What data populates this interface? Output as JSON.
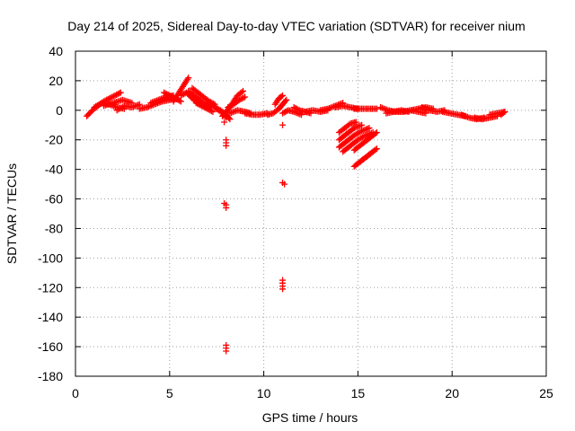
{
  "chart_data": {
    "type": "scatter",
    "title": "Day 214 of 2025, Sidereal Day-to-day VTEC variation (SDTVAR) for receiver nium",
    "xlabel": "GPS time / hours",
    "ylabel": "SDTVAR / TECUs",
    "xlim": [
      0,
      25
    ],
    "ylim": [
      -180,
      40
    ],
    "xticks": [
      0,
      5,
      10,
      15,
      20,
      25
    ],
    "yticks": [
      -180,
      -160,
      -140,
      -120,
      -100,
      -80,
      -60,
      -40,
      -20,
      0,
      20,
      40
    ],
    "grid": true,
    "marker": "+",
    "color": "#ff0000",
    "series": [
      {
        "name": "SDTVAR",
        "segments": [
          [
            [
              0.6,
              -4
            ],
            [
              0.9,
              0
            ],
            [
              1.2,
              3
            ],
            [
              1.5,
              6
            ],
            [
              1.8,
              8
            ],
            [
              2.1,
              10
            ],
            [
              2.4,
              12
            ]
          ],
          [
            [
              1.0,
              2
            ],
            [
              1.4,
              5
            ],
            [
              1.8,
              4
            ],
            [
              2.2,
              2
            ],
            [
              2.6,
              1
            ]
          ],
          [
            [
              1.5,
              3
            ],
            [
              2.0,
              5
            ],
            [
              2.5,
              7
            ],
            [
              3.0,
              5
            ]
          ],
          [
            [
              2.2,
              0
            ],
            [
              2.6,
              3
            ],
            [
              3.0,
              2
            ],
            [
              3.4,
              4
            ]
          ],
          [
            [
              3.4,
              1
            ],
            [
              3.8,
              2
            ],
            [
              4.2,
              4
            ],
            [
              4.6,
              6
            ],
            [
              5.0,
              7
            ],
            [
              5.4,
              8
            ]
          ],
          [
            [
              4.0,
              5
            ],
            [
              4.4,
              7
            ],
            [
              4.8,
              9
            ],
            [
              5.2,
              10
            ]
          ],
          [
            [
              4.7,
              12
            ],
            [
              5.0,
              10
            ],
            [
              5.3,
              8
            ],
            [
              5.6,
              6
            ]
          ],
          [
            [
              5.2,
              6
            ],
            [
              5.5,
              12
            ],
            [
              5.8,
              18
            ],
            [
              6.0,
              22
            ]
          ],
          [
            [
              5.6,
              10
            ],
            [
              5.9,
              12
            ],
            [
              6.2,
              8
            ],
            [
              6.5,
              5
            ],
            [
              6.8,
              3
            ]
          ],
          [
            [
              6.0,
              13
            ],
            [
              6.3,
              10
            ],
            [
              6.6,
              7
            ],
            [
              6.9,
              4
            ],
            [
              7.2,
              2
            ]
          ],
          [
            [
              6.2,
              15
            ],
            [
              6.5,
              12
            ],
            [
              6.8,
              9
            ],
            [
              7.1,
              6
            ],
            [
              7.4,
              4
            ]
          ],
          [
            [
              6.4,
              5
            ],
            [
              6.7,
              3
            ],
            [
              7.0,
              1
            ],
            [
              7.3,
              -1
            ]
          ],
          [
            [
              7.0,
              5
            ],
            [
              7.3,
              3
            ],
            [
              7.6,
              0
            ],
            [
              7.9,
              -2
            ],
            [
              8.0,
              -5
            ]
          ],
          [
            [
              7.4,
              2
            ],
            [
              7.7,
              0
            ],
            [
              8.0,
              -3
            ],
            [
              8.2,
              -6
            ]
          ],
          [
            [
              7.8,
              -4
            ],
            [
              8.0,
              -1
            ],
            [
              8.2,
              2
            ],
            [
              8.4,
              6
            ],
            [
              8.6,
              10
            ],
            [
              8.9,
              13
            ]
          ],
          [
            [
              8.1,
              2
            ],
            [
              8.4,
              4
            ],
            [
              8.7,
              7
            ],
            [
              9.0,
              9
            ]
          ],
          [
            [
              8.2,
              -2
            ],
            [
              8.6,
              0
            ],
            [
              9.0,
              -1
            ],
            [
              9.3,
              -2
            ]
          ],
          [
            [
              9.0,
              -2
            ],
            [
              9.4,
              -3
            ],
            [
              9.8,
              -3
            ],
            [
              10.2,
              -2
            ]
          ],
          [
            [
              10.2,
              -3
            ],
            [
              10.5,
              -2
            ],
            [
              10.8,
              1
            ],
            [
              11.0,
              4
            ],
            [
              11.2,
              7
            ]
          ],
          [
            [
              10.6,
              4
            ],
            [
              10.8,
              8
            ],
            [
              11.0,
              10
            ]
          ],
          [
            [
              11.0,
              -2
            ],
            [
              11.3,
              0
            ],
            [
              11.6,
              -1
            ],
            [
              12.0,
              -3
            ]
          ],
          [
            [
              11.6,
              2
            ],
            [
              11.9,
              0
            ],
            [
              12.2,
              -1
            ],
            [
              12.5,
              -2
            ]
          ],
          [
            [
              12.2,
              -1
            ],
            [
              12.6,
              0
            ],
            [
              13.0,
              -1
            ],
            [
              13.4,
              0
            ]
          ],
          [
            [
              13.0,
              0
            ],
            [
              13.4,
              1
            ],
            [
              13.8,
              3
            ],
            [
              14.2,
              5
            ]
          ],
          [
            [
              13.8,
              2
            ],
            [
              14.2,
              3
            ],
            [
              14.6,
              2
            ],
            [
              15.0,
              1
            ]
          ],
          [
            [
              14.8,
              1
            ],
            [
              15.2,
              1
            ],
            [
              15.6,
              1
            ],
            [
              16.0,
              1
            ]
          ],
          [
            [
              14.0,
              -15
            ],
            [
              14.3,
              -12
            ],
            [
              14.6,
              -9
            ],
            [
              14.9,
              -8
            ]
          ],
          [
            [
              14.0,
              -20
            ],
            [
              14.4,
              -16
            ],
            [
              14.8,
              -12
            ],
            [
              15.2,
              -10
            ]
          ],
          [
            [
              14.0,
              -25
            ],
            [
              14.4,
              -21
            ],
            [
              14.8,
              -17
            ],
            [
              15.2,
              -14
            ],
            [
              15.6,
              -12
            ]
          ],
          [
            [
              14.2,
              -28
            ],
            [
              14.6,
              -24
            ],
            [
              15.0,
              -20
            ],
            [
              15.4,
              -17
            ],
            [
              15.8,
              -15
            ]
          ],
          [
            [
              14.8,
              -27
            ],
            [
              15.2,
              -23
            ],
            [
              15.6,
              -19
            ],
            [
              16.0,
              -15
            ]
          ],
          [
            [
              14.8,
              -38
            ],
            [
              15.2,
              -34
            ],
            [
              15.6,
              -30
            ],
            [
              16.0,
              -26
            ]
          ],
          [
            [
              15.0,
              -36
            ],
            [
              15.4,
              -32
            ],
            [
              15.8,
              -28
            ]
          ],
          [
            [
              16.2,
              2
            ],
            [
              16.6,
              0
            ],
            [
              17.0,
              -1
            ],
            [
              17.4,
              -1
            ]
          ],
          [
            [
              16.5,
              -2
            ],
            [
              16.9,
              -1
            ],
            [
              17.3,
              0
            ],
            [
              17.7,
              -1
            ]
          ],
          [
            [
              17.4,
              -1
            ],
            [
              17.8,
              0
            ],
            [
              18.2,
              1
            ],
            [
              18.6,
              2
            ],
            [
              19.0,
              1
            ]
          ],
          [
            [
              17.8,
              0
            ],
            [
              18.2,
              -1
            ],
            [
              18.6,
              -2
            ]
          ],
          [
            [
              18.4,
              2
            ],
            [
              18.8,
              0
            ],
            [
              19.2,
              -1
            ],
            [
              19.6,
              0
            ]
          ],
          [
            [
              19.5,
              -1
            ],
            [
              19.9,
              -2
            ],
            [
              20.3,
              -3
            ],
            [
              20.7,
              -4
            ]
          ],
          [
            [
              20.5,
              -3
            ],
            [
              20.9,
              -5
            ],
            [
              21.3,
              -6
            ],
            [
              21.7,
              -5
            ]
          ],
          [
            [
              21.2,
              -5
            ],
            [
              21.6,
              -6
            ],
            [
              22.0,
              -5
            ],
            [
              22.4,
              -4
            ]
          ],
          [
            [
              22.0,
              -3
            ],
            [
              22.4,
              -2
            ],
            [
              22.8,
              -1
            ]
          ],
          [
            [
              22.6,
              -3
            ],
            [
              22.8,
              -1
            ]
          ]
        ],
        "points": [
          [
            7.9,
            -8
          ],
          [
            8.0,
            -20
          ],
          [
            8.0,
            -22
          ],
          [
            8.0,
            -24
          ],
          [
            7.9,
            -63
          ],
          [
            8.0,
            -64
          ],
          [
            8.0,
            -66
          ],
          [
            8.0,
            -159
          ],
          [
            8.0,
            -161
          ],
          [
            8.0,
            -163
          ],
          [
            11.0,
            -10
          ],
          [
            11.0,
            -49
          ],
          [
            11.1,
            -50
          ],
          [
            11.0,
            -115
          ],
          [
            11.0,
            -117
          ],
          [
            11.0,
            -119
          ],
          [
            11.0,
            -121
          ]
        ]
      }
    ]
  }
}
